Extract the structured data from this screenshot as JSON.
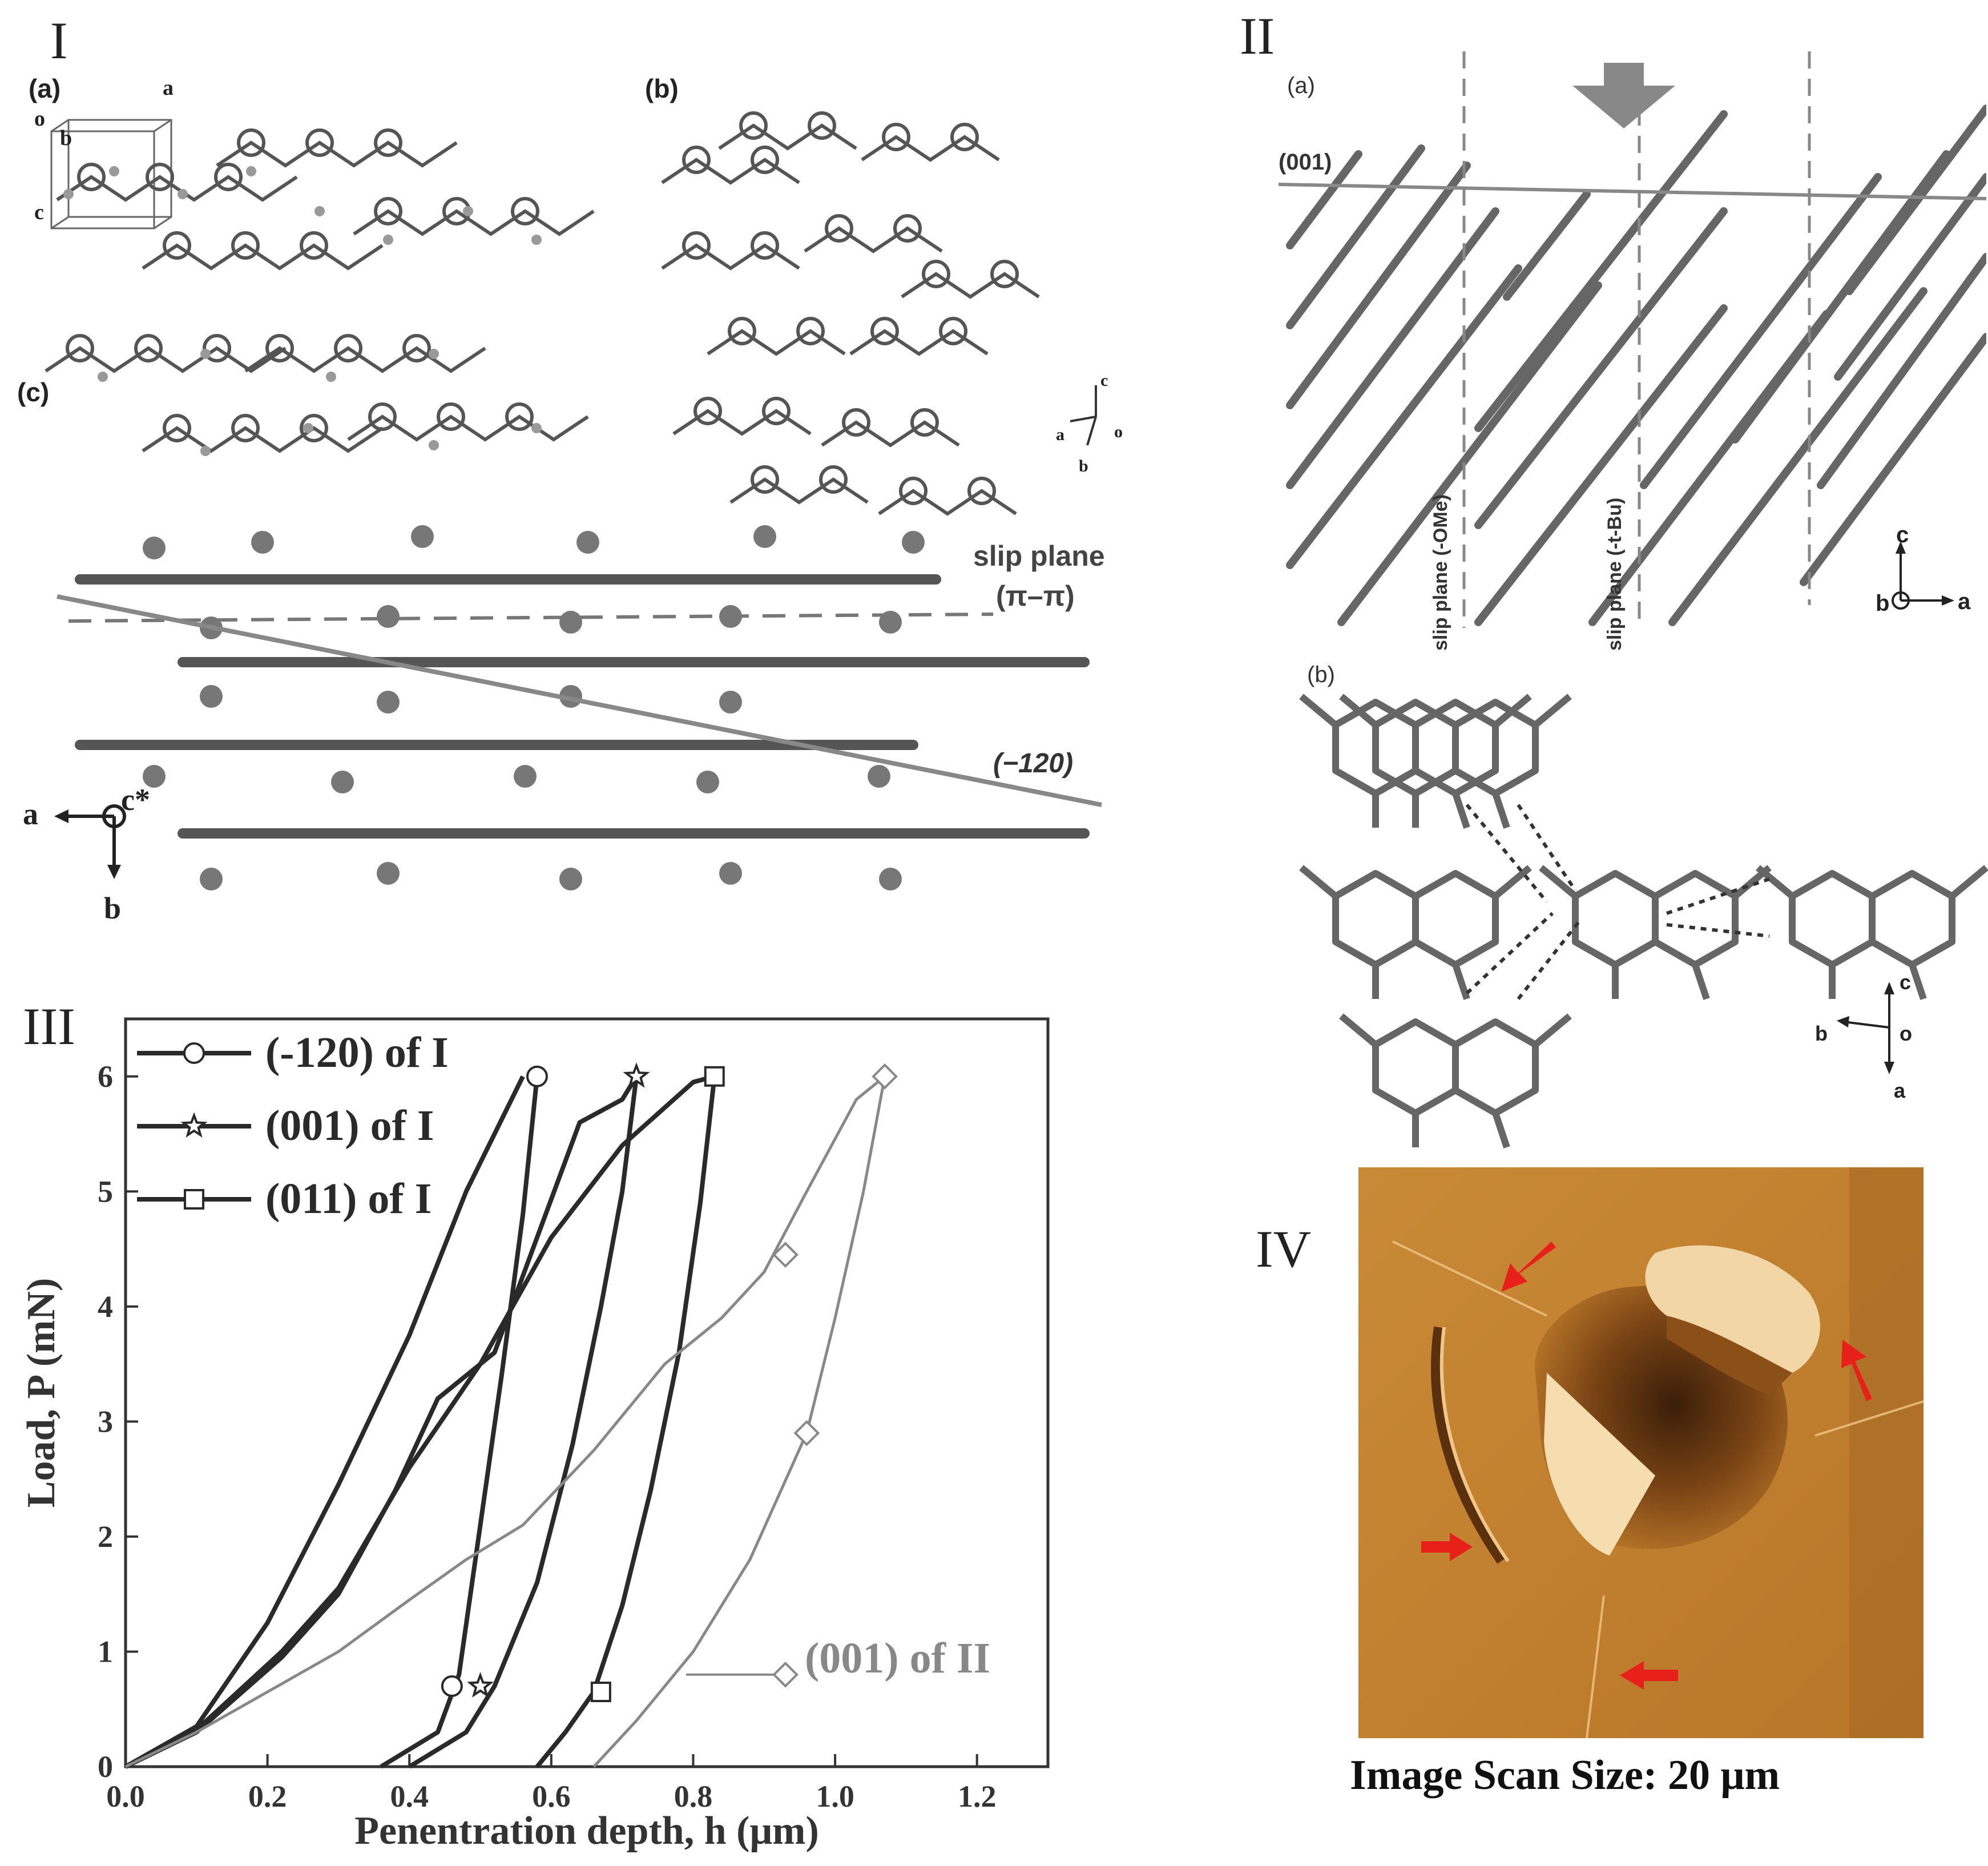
{
  "panel_I": {
    "label": "I",
    "sub_a": "(a)",
    "sub_b": "(b)",
    "sub_c": "(c)",
    "axes_a": {
      "o": "o",
      "a": "a",
      "b": "b",
      "c": "c"
    },
    "axes_b": {
      "c": "c",
      "a": "a",
      "o": "o",
      "b": "b"
    },
    "slip_plane_label": "slip plane",
    "slip_plane_type": "(π–π)",
    "plane_label": "(−120)",
    "axes_c": {
      "a": "a",
      "c": "c*",
      "b": "b"
    }
  },
  "panel_II": {
    "label": "II",
    "sub_a": "(a)",
    "sub_b": "(b)",
    "plane_001": "(001)",
    "slip_ome": "slip plane (-OMe)",
    "slip_tbu": "slip plane (-t-Bu)",
    "axes_a": {
      "c": "c",
      "b": "b",
      "a": "a"
    },
    "axes_b": {
      "c": "c",
      "b": "b",
      "o": "o",
      "a": "a"
    }
  },
  "panel_III": {
    "label": "III"
  },
  "panel_IV": {
    "label": "IV",
    "caption": "Image Scan Size: 20 μm"
  },
  "chart_data": {
    "type": "line",
    "xlabel": "Penentration depth, h (μm)",
    "ylabel": "Load, P (mN)",
    "xlim": [
      0.0,
      1.3
    ],
    "ylim": [
      0,
      6.5
    ],
    "xticks": [
      "0.0",
      "0.2",
      "0.4",
      "0.6",
      "0.8",
      "1.0",
      "1.2"
    ],
    "yticks": [
      "0",
      "1",
      "2",
      "3",
      "4",
      "5",
      "6"
    ],
    "legend_position": "top-left",
    "series": [
      {
        "name": "(-120) of I",
        "marker": "circle",
        "color": "#2a2a2a",
        "loading": [
          [
            0,
            0
          ],
          [
            0.1,
            0.35
          ],
          [
            0.2,
            1.25
          ],
          [
            0.3,
            2.45
          ],
          [
            0.4,
            3.75
          ],
          [
            0.48,
            5.0
          ],
          [
            0.56,
            6.0
          ]
        ],
        "unloading": [
          [
            0.58,
            6.0
          ],
          [
            0.56,
            4.8
          ],
          [
            0.53,
            3.4
          ],
          [
            0.5,
            2.1
          ],
          [
            0.47,
            0.8
          ],
          [
            0.44,
            0.3
          ],
          [
            0.36,
            0
          ]
        ],
        "markers": [
          [
            0.46,
            0.7
          ],
          [
            0.58,
            6.0
          ]
        ]
      },
      {
        "name": "(001) of I",
        "marker": "star",
        "color": "#2a2a2a",
        "loading": [
          [
            0,
            0
          ],
          [
            0.1,
            0.3
          ],
          [
            0.22,
            0.95
          ],
          [
            0.3,
            1.5
          ],
          [
            0.38,
            2.4
          ],
          [
            0.44,
            3.2
          ],
          [
            0.52,
            3.6
          ],
          [
            0.58,
            4.6
          ],
          [
            0.64,
            5.6
          ],
          [
            0.7,
            5.8
          ],
          [
            0.72,
            6.0
          ]
        ],
        "unloading": [
          [
            0.72,
            6.0
          ],
          [
            0.7,
            5.0
          ],
          [
            0.67,
            4.0
          ],
          [
            0.63,
            2.8
          ],
          [
            0.58,
            1.6
          ],
          [
            0.52,
            0.7
          ],
          [
            0.48,
            0.3
          ],
          [
            0.4,
            0
          ]
        ],
        "markers": [
          [
            0.5,
            0.7
          ],
          [
            0.72,
            6.0
          ]
        ]
      },
      {
        "name": "(011) of I",
        "marker": "square",
        "color": "#2a2a2a",
        "loading": [
          [
            0,
            0
          ],
          [
            0.1,
            0.32
          ],
          [
            0.22,
            1.0
          ],
          [
            0.3,
            1.55
          ],
          [
            0.4,
            2.6
          ],
          [
            0.5,
            3.5
          ],
          [
            0.6,
            4.6
          ],
          [
            0.7,
            5.4
          ],
          [
            0.8,
            5.95
          ],
          [
            0.83,
            6.0
          ]
        ],
        "unloading": [
          [
            0.83,
            6.0
          ],
          [
            0.81,
            4.9
          ],
          [
            0.78,
            3.6
          ],
          [
            0.74,
            2.4
          ],
          [
            0.7,
            1.4
          ],
          [
            0.66,
            0.65
          ],
          [
            0.62,
            0.3
          ],
          [
            0.58,
            0
          ]
        ],
        "markers": [
          [
            0.67,
            0.65
          ],
          [
            0.83,
            6.0
          ]
        ]
      },
      {
        "name": "(001) of II",
        "marker": "diamond",
        "color": "#888888",
        "loading": [
          [
            0,
            0
          ],
          [
            0.1,
            0.3
          ],
          [
            0.2,
            0.65
          ],
          [
            0.3,
            1.0
          ],
          [
            0.4,
            1.45
          ],
          [
            0.48,
            1.8
          ],
          [
            0.56,
            2.1
          ],
          [
            0.66,
            2.75
          ],
          [
            0.76,
            3.5
          ],
          [
            0.84,
            3.9
          ],
          [
            0.9,
            4.3
          ],
          [
            0.96,
            5.0
          ],
          [
            1.03,
            5.8
          ],
          [
            1.07,
            6.0
          ]
        ],
        "unloading": [
          [
            1.07,
            6.0
          ],
          [
            1.04,
            5.0
          ],
          [
            1.0,
            3.9
          ],
          [
            0.96,
            2.9
          ],
          [
            0.88,
            1.8
          ],
          [
            0.8,
            1.0
          ],
          [
            0.72,
            0.4
          ],
          [
            0.66,
            0
          ]
        ],
        "markers": [
          [
            0.93,
            4.45
          ],
          [
            0.96,
            2.9
          ],
          [
            1.07,
            6.0
          ]
        ]
      }
    ],
    "annotation": "(001) of II"
  }
}
